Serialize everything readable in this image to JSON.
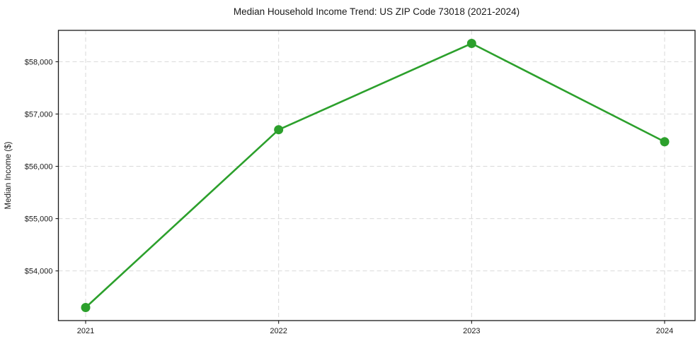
{
  "title": "Median Household Income Trend: US ZIP Code 73018 (2021-2024)",
  "chart_data": {
    "type": "line",
    "title": "Median Household Income Trend: US ZIP Code 73018 (2021-2024)",
    "categories": [
      "2021",
      "2022",
      "2023",
      "2024"
    ],
    "x": [
      2021,
      2022,
      2023,
      2024
    ],
    "series": [
      {
        "name": "Median Household Income",
        "values": [
          53300,
          56700,
          58350,
          56470
        ]
      }
    ],
    "xlabel": "",
    "ylabel": "Median Income ($)",
    "y_ticks": [
      54000,
      55000,
      56000,
      57000,
      58000
    ],
    "y_tick_labels": [
      "$54,000",
      "$55,000",
      "$56,000",
      "$57,000",
      "$58,000"
    ],
    "ylim": [
      53050,
      58600
    ],
    "grid": true,
    "grid_style": "dashed",
    "legend": "none",
    "colors": {
      "line": "#2ca02c",
      "marker": "#2ca02c",
      "grid": "#d9d9d9",
      "axis": "#1a1a1a",
      "text": "#1a1a1a",
      "background": "#ffffff"
    }
  }
}
